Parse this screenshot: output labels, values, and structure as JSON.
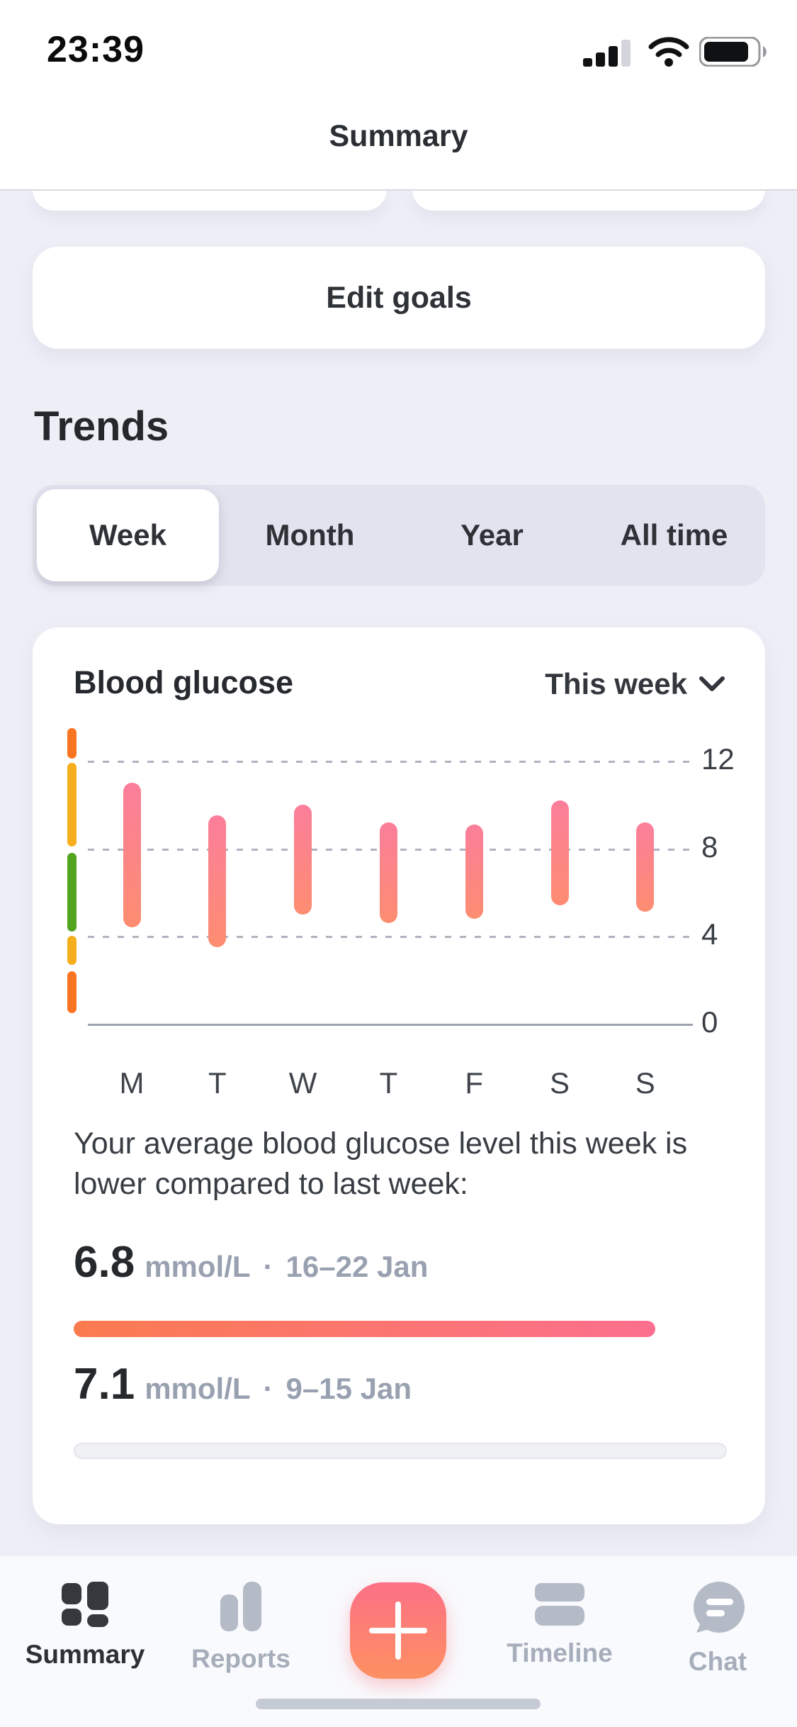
{
  "status_bar": {
    "time": "23:39"
  },
  "header": {
    "title": "Summary"
  },
  "goals": {
    "edit_button": "Edit goals"
  },
  "trends": {
    "heading": "Trends",
    "tabs": [
      {
        "label": "Week",
        "selected": true
      },
      {
        "label": "Month",
        "selected": false
      },
      {
        "label": "Year",
        "selected": false
      },
      {
        "label": "All time",
        "selected": false
      }
    ]
  },
  "chart_card": {
    "title": "Blood glucose",
    "period_selector": "This week",
    "summary_text": "Your average blood glucose level this week is lower compared to last week:",
    "comparison": [
      {
        "value": "6.8",
        "unit": "mmol/L",
        "separator": "·",
        "range": "16–22 Jan",
        "fill": 0.89,
        "bar_style": "gradient"
      },
      {
        "value": "7.1",
        "unit": "mmol/L",
        "separator": "·",
        "range": "9–15 Jan",
        "fill": 0,
        "bar_style": "empty-track"
      }
    ]
  },
  "chart_data": {
    "type": "bar",
    "subtype": "floating-range-bars",
    "title": "Blood glucose",
    "unit": "mmol/L",
    "categories": [
      "M",
      "T",
      "W",
      "T",
      "F",
      "S",
      "S"
    ],
    "series": [
      {
        "name": "Daily blood glucose range (mmol/L)",
        "low": [
          4.4,
          3.5,
          5.0,
          4.6,
          4.8,
          5.4,
          5.1
        ],
        "high": [
          11.0,
          9.5,
          10.0,
          9.2,
          9.1,
          10.2,
          9.2
        ]
      }
    ],
    "yticks": [
      0,
      4,
      8,
      12
    ],
    "ylim": [
      0,
      13.6
    ],
    "grid": "dashed-horizontal",
    "bar_gradient": [
      "#FC7E9B",
      "#FD8D71"
    ],
    "target_scale_segments": [
      {
        "color": "#F87420",
        "from": 12.1,
        "to": 13.5
      },
      {
        "color": "#F5AF1C",
        "from": 8.1,
        "to": 11.9
      },
      {
        "color": "#52A41E",
        "from": 4.2,
        "to": 7.8
      },
      {
        "color": "#F5AF1C",
        "from": 2.7,
        "to": 4.0
      },
      {
        "color": "#F87420",
        "from": 0.5,
        "to": 2.4
      }
    ]
  },
  "tab_bar": {
    "items": [
      {
        "label": "Summary",
        "active": true
      },
      {
        "label": "Reports",
        "active": false
      },
      {
        "label": "Timeline",
        "active": false
      },
      {
        "label": "Chat",
        "active": false
      }
    ],
    "add_button": "+"
  },
  "colors": {
    "page_background": "#EDEEF6",
    "card_background": "#FFFFFF",
    "accent_gradient_start": "#FB7B50",
    "accent_gradient_end": "#FC6F8E",
    "inactive_gray": "#A6ADBB",
    "text_dark": "#26292E",
    "text_gray": "#99A1B1"
  }
}
